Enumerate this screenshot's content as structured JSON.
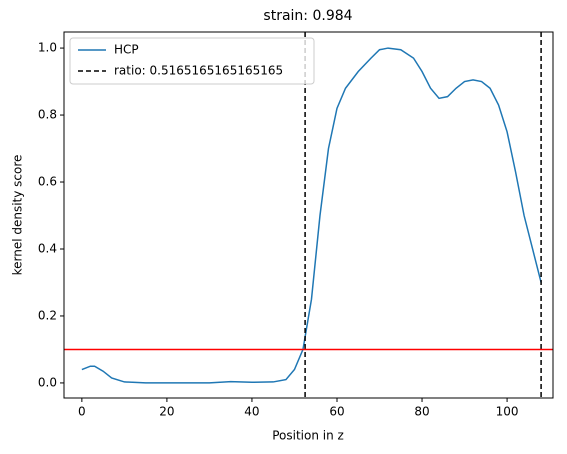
{
  "chart_data": {
    "type": "line",
    "title": "strain: 0.984",
    "x_label": "Position in z",
    "y_label": "kernel density score",
    "series": [
      {
        "name": "HCP",
        "color": "#1f77b4",
        "x": [
          0,
          2,
          3,
          5,
          7,
          10,
          15,
          20,
          30,
          35,
          40,
          45,
          48,
          50,
          52,
          54,
          56,
          58,
          60,
          62,
          65,
          68,
          70,
          72,
          75,
          78,
          80,
          82,
          84,
          86,
          88,
          90,
          92,
          94,
          96,
          98,
          100,
          102,
          104,
          106,
          108
        ],
        "values": [
          0.04,
          0.05,
          0.05,
          0.035,
          0.015,
          0.003,
          0,
          0,
          0,
          0.004,
          0.002,
          0.003,
          0.01,
          0.04,
          0.1,
          0.25,
          0.5,
          0.7,
          0.82,
          0.88,
          0.93,
          0.97,
          0.995,
          1.0,
          0.995,
          0.97,
          0.93,
          0.88,
          0.85,
          0.855,
          0.88,
          0.9,
          0.905,
          0.9,
          0.88,
          0.83,
          0.75,
          0.63,
          0.5,
          0.4,
          0.3
        ]
      }
    ],
    "vlines": {
      "name": "ratio: 0.5165165165165165",
      "color": "#000000",
      "x": [
        52.5,
        108
      ]
    },
    "hline": {
      "color": "#ff0000",
      "y": 0.1
    },
    "xlim": [
      -4.2,
      110.8
    ],
    "ylim": [
      -0.045,
      1.048
    ],
    "xticks": [
      0,
      20,
      40,
      60,
      80,
      100
    ],
    "yticks": [
      {
        "value": 0,
        "label": "0.0"
      },
      {
        "value": 0.2,
        "label": "0.2"
      },
      {
        "value": 0.4,
        "label": "0.4"
      },
      {
        "value": 0.6,
        "label": "0.6"
      },
      {
        "value": 0.8,
        "label": "0.8"
      },
      {
        "value": 1,
        "label": "1.0"
      }
    ],
    "legend": "upper left"
  }
}
